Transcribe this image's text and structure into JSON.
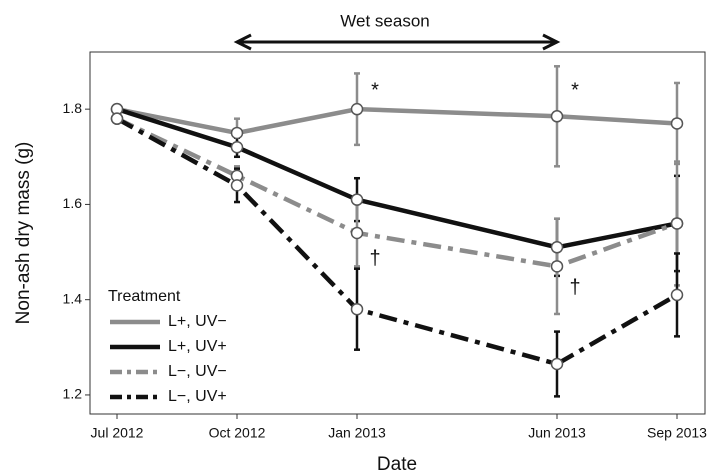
{
  "chart_data": {
    "type": "line",
    "xlabel": "Date",
    "ylabel": "Non-ash dry mass (g)",
    "x": [
      "Jul 2012",
      "Oct 2012",
      "Jan 2013",
      "Jun 2013",
      "Sep 2013"
    ],
    "ylim": [
      1.16,
      1.92
    ],
    "yticks": [
      1.2,
      1.4,
      1.6,
      1.8
    ],
    "legend": {
      "title": "Treatment",
      "position": "lower left"
    },
    "series": [
      {
        "name": "L+, UV−",
        "color": "#8c8c8c",
        "dash": "solid",
        "values": [
          1.8,
          1.75,
          1.8,
          1.785,
          1.77
        ],
        "errors": [
          0,
          0.03,
          0.075,
          0.105,
          0.085
        ]
      },
      {
        "name": "L+, UV+",
        "color": "#111111",
        "dash": "solid",
        "values": [
          1.8,
          1.72,
          1.61,
          1.51,
          1.56
        ],
        "errors": [
          0,
          0.02,
          0.045,
          0.06,
          0.1
        ]
      },
      {
        "name": "L−, UV−",
        "color": "#8c8c8c",
        "dash": "dashdot",
        "values": [
          1.78,
          1.66,
          1.54,
          1.47,
          1.56
        ],
        "errors": [
          0,
          0.02,
          0.07,
          0.1,
          0.13
        ]
      },
      {
        "name": "L−, UV+",
        "color": "#111111",
        "dash": "dashdot",
        "values": [
          1.78,
          1.64,
          1.38,
          1.265,
          1.41
        ],
        "errors": [
          0,
          0.035,
          0.085,
          0.068,
          0.087
        ]
      }
    ],
    "span": {
      "text": "Wet season",
      "from": "Oct 2012",
      "to": "Jun 2013"
    },
    "annotations": [
      {
        "text": "*",
        "x": "Jan 2013",
        "y": 1.838
      },
      {
        "text": "*",
        "x": "Jun 2013",
        "y": 1.838
      },
      {
        "text": "†",
        "x": "Jan 2013",
        "y": 1.485
      },
      {
        "text": "†",
        "x": "Jun 2013",
        "y": 1.424
      }
    ]
  }
}
